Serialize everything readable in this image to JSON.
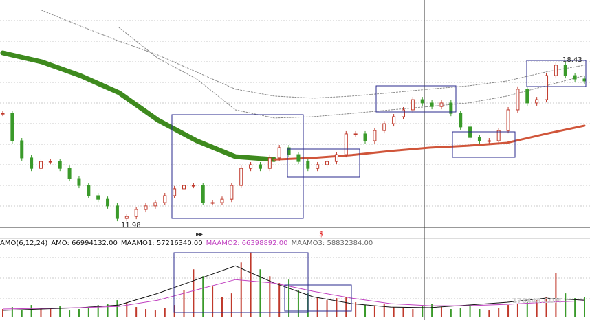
{
  "chart_data": {
    "type": "candlestick",
    "ylim": [
      11.87,
      20.74
    ],
    "values": [
      16.3,
      15.23,
      14.56,
      14.15,
      14.42,
      14.42,
      14.15,
      13.75,
      13.48,
      13.08,
      12.94,
      12.68,
      12.19,
      12.27,
      12.54,
      12.68,
      12.81,
      13.08,
      13.35,
      13.48,
      13.48,
      12.81,
      12.81,
      12.94,
      13.48,
      14.15,
      14.29,
      14.15,
      14.56,
      14.96,
      14.69,
      14.42,
      14.15,
      14.29,
      14.42,
      14.69,
      15.5,
      15.5,
      15.23,
      15.63,
      15.9,
      16.17,
      16.44,
      16.84,
      16.71,
      16.57,
      16.71,
      16.3,
      15.77,
      15.36,
      15.23,
      15.23,
      15.63,
      16.44,
      17.25,
      16.71,
      16.84,
      17.78,
      18.19,
      17.78,
      17.65,
      17.57
    ],
    "up_color": "#c0392b",
    "down_color": "#3a9a2a",
    "overlays": [
      {
        "color": "#3e8a1e",
        "width": 7,
        "values": [
          18.67,
          18.32,
          17.78,
          17.11,
          16.04,
          15.23,
          14.61,
          14.5,
          null,
          null,
          null,
          null,
          null,
          null,
          null,
          null
        ]
      },
      {
        "color": "#d0553a",
        "width": 3,
        "values": [
          null,
          null,
          null,
          null,
          null,
          null,
          null,
          14.5,
          14.56,
          14.67,
          14.83,
          14.96,
          15.04,
          15.15,
          15.5,
          15.82
        ]
      },
      {
        "color": "#888888",
        "width": 1,
        "values": [
          null,
          20.34,
          19.72,
          19.13,
          18.59,
          17.92,
          17.25,
          16.98,
          16.9,
          16.98,
          17.11,
          17.25,
          17.38,
          17.57,
          17.92,
          18.19
        ]
      },
      {
        "color": "#888888",
        "width": 1,
        "values": [
          null,
          null,
          null,
          19.66,
          18.46,
          17.65,
          16.44,
          16.12,
          16.17,
          16.3,
          16.44,
          16.57,
          16.71,
          16.98,
          17.38,
          17.78
        ]
      }
    ],
    "high_label": "18.43",
    "low_label": "11.98",
    "marker": "$",
    "volume": {
      "ylim": [
        0,
        300000000
      ],
      "values": [
        31200000,
        39000000,
        26000000,
        46800000,
        36400000,
        31200000,
        41600000,
        26000000,
        31200000,
        36400000,
        46800000,
        52000000,
        65000000,
        57200000,
        39000000,
        31200000,
        26000000,
        36400000,
        46800000,
        104000000,
        182000000,
        156000000,
        117000000,
        78000000,
        91000000,
        208000000,
        247000000,
        182000000,
        156000000,
        130000000,
        143000000,
        104000000,
        91000000,
        78000000,
        65000000,
        72800000,
        78000000,
        57200000,
        46800000,
        41600000,
        52000000,
        39000000,
        36400000,
        31200000,
        46800000,
        52000000,
        39000000,
        31200000,
        36400000,
        41600000,
        31200000,
        26000000,
        36400000,
        46800000,
        52000000,
        57200000,
        65000000,
        78000000,
        169000000,
        91000000,
        72800000,
        78000000
      ],
      "lines": [
        {
          "color": "#111111",
          "values": [
            26000000,
            31200000,
            36400000,
            46800000,
            91000000,
            143000000,
            195000000,
            130000000,
            78000000,
            52000000,
            39000000,
            36400000,
            46800000,
            57200000,
            72800000,
            65000000
          ]
        },
        {
          "color": "#c040c0",
          "values": [
            31200000,
            33800000,
            36400000,
            41600000,
            65000000,
            104000000,
            143000000,
            130000000,
            98800000,
            72800000,
            52000000,
            44200000,
            44200000,
            49400000,
            57200000,
            62400000
          ]
        }
      ],
      "legend": [
        {
          "text": "AMO(6,12,24)",
          "color": "#111111"
        },
        {
          "text": "AMO: 66994132.00",
          "color": "#111111"
        },
        {
          "text": "MAAMO1: 57216340.00",
          "color": "#111111"
        },
        {
          "text": "MAAMO2: 66398892.00",
          "color": "#c040c0"
        },
        {
          "text": "MAAMO3: 58832384.00",
          "color": "#666666"
        }
      ]
    },
    "watermark": "178448.COM"
  }
}
